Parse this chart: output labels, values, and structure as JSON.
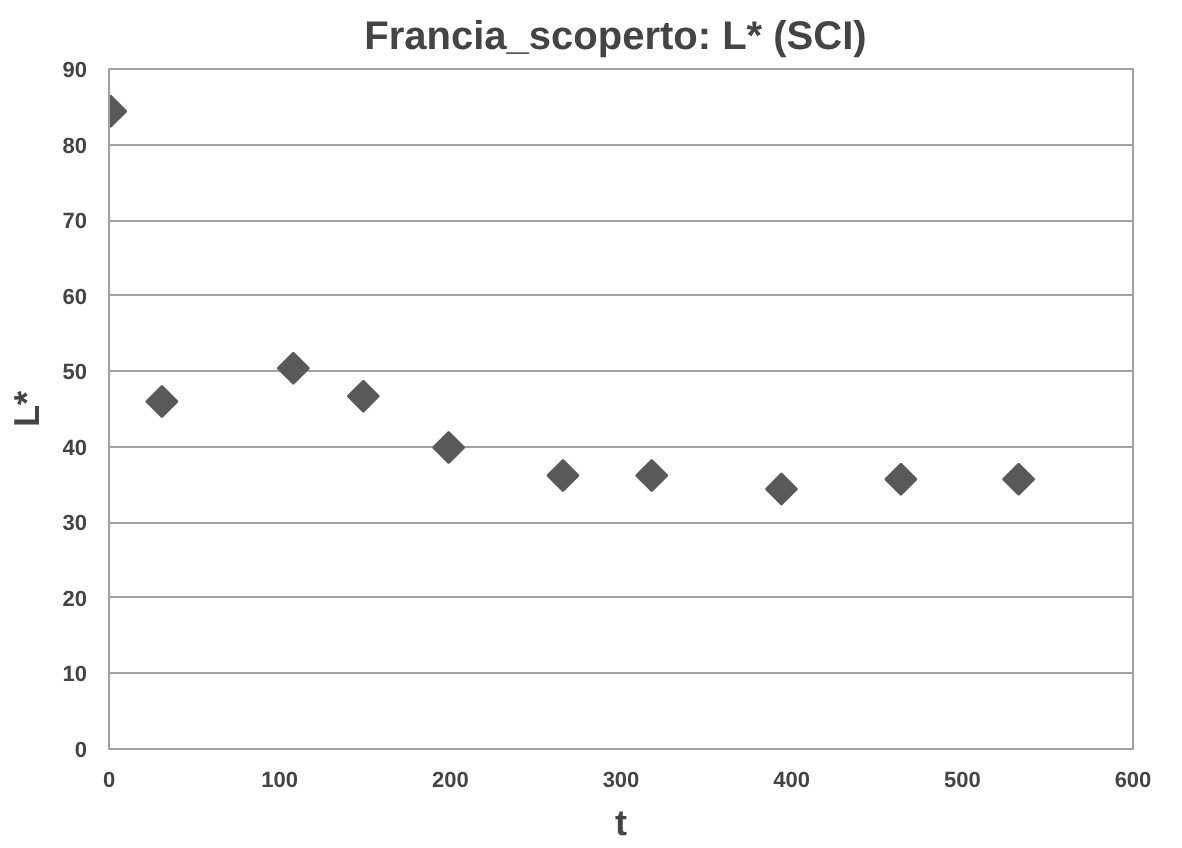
{
  "chart_data": {
    "type": "scatter",
    "title": "Francia_scoperto:  L* (SCI)",
    "xlabel": "t",
    "ylabel": "L*",
    "x": [
      1,
      31,
      108,
      149,
      199,
      266,
      318,
      394,
      464,
      533
    ],
    "series": [
      {
        "color": "#595959",
        "values": [
          84.4,
          46.0,
          50.4,
          46.7,
          39.9,
          36.2,
          36.2,
          34.4,
          35.7,
          35.7
        ]
      }
    ],
    "xlim": [
      0,
      600
    ],
    "xticks": [
      0,
      100,
      200,
      300,
      400,
      500,
      600
    ],
    "ylim": [
      0,
      90
    ],
    "yticks": [
      0,
      10,
      20,
      30,
      40,
      50,
      60,
      70,
      80,
      90
    ],
    "grid": "y",
    "marker": "diamond"
  }
}
